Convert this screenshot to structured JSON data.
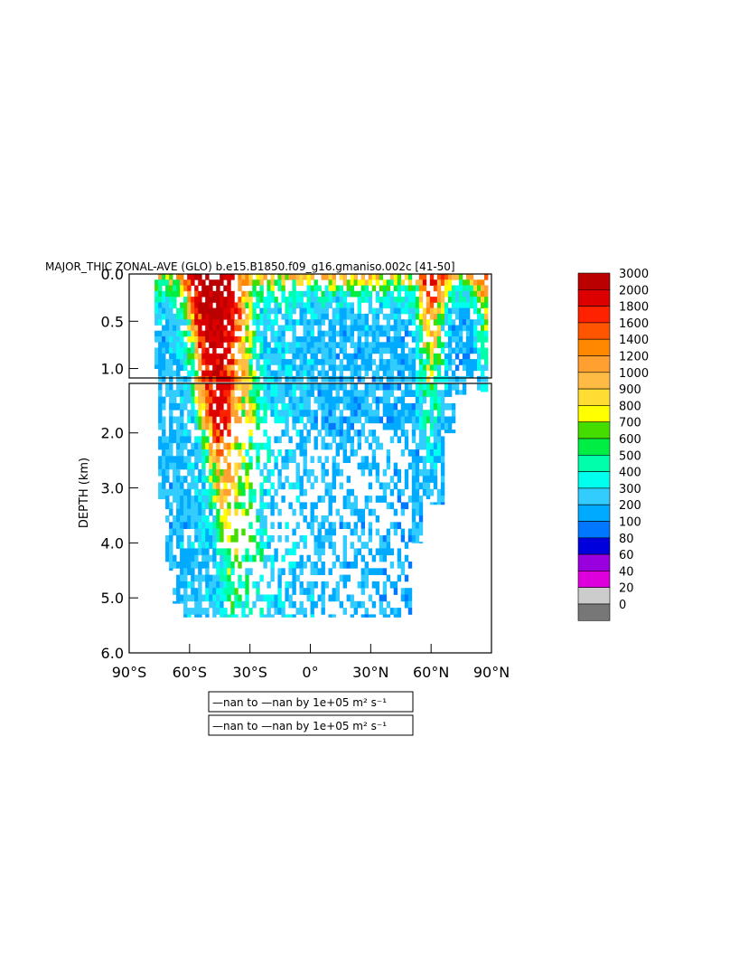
{
  "chart_data": {
    "type": "heatmap",
    "title": "MAJOR_THIC ZONAL-AVE (GLO) b.e15.B1850.f09_g16.gmaniso.002c [41-50]",
    "ylabel": "DEPTH (km)",
    "xlabel": "",
    "x_ticks": [
      "90°S",
      "60°S",
      "30°S",
      "0°",
      "30°N",
      "60°N",
      "90°N"
    ],
    "x_tick_values": [
      -90,
      -60,
      -30,
      0,
      30,
      60,
      90
    ],
    "xlim": [
      -90,
      90
    ],
    "upper_panel": {
      "ylim": [
        0,
        1.1
      ],
      "y_ticks": [
        "0.0",
        "0.5",
        "1.0"
      ],
      "y_tick_values": [
        0,
        0.5,
        1.0
      ]
    },
    "lower_panel": {
      "ylim": [
        1.1,
        6.0
      ],
      "y_ticks": [
        "2.0",
        "3.0",
        "4.0",
        "5.0",
        "6.0"
      ],
      "y_tick_values": [
        2,
        3,
        4,
        5,
        6
      ]
    },
    "colorbar": {
      "labels": [
        "3000",
        "2000",
        "1800",
        "1600",
        "1400",
        "1200",
        "1000",
        "900",
        "800",
        "700",
        "600",
        "500",
        "400",
        "300",
        "200",
        "100",
        "80",
        "60",
        "40",
        "20",
        "0"
      ],
      "colors": [
        "#bb0000",
        "#dd0000",
        "#ff2200",
        "#ff5500",
        "#ff8800",
        "#ffa030",
        "#ffbb44",
        "#ffdd33",
        "#ffff00",
        "#44dd00",
        "#00ee44",
        "#00ffaa",
        "#00ffee",
        "#33ccff",
        "#00aaff",
        "#0077ff",
        "#0000dd",
        "#9900dd",
        "#dd00dd",
        "#cccccc",
        "#777777"
      ]
    },
    "notes": [
      "—nan to —nan by 1e+05 m² s⁻¹",
      "—nan to —nan by 1e+05 m² s⁻¹"
    ]
  }
}
